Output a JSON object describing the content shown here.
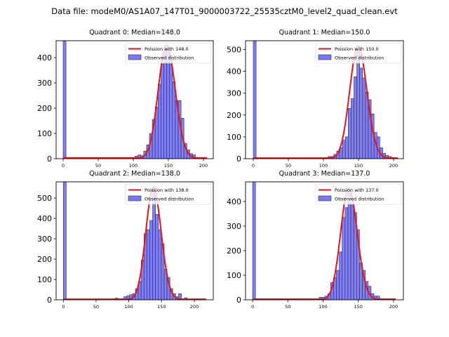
{
  "figure": {
    "suptitle": "Data file: modeM0/AS1A07_147T01_9000003722_25535cztM0_level2_quad_clean.evt"
  },
  "chart_data": [
    {
      "type": "bar",
      "title": "Quadrant 0: Median=148.0",
      "xlabel": "",
      "ylabel": "",
      "xlim": [
        -10,
        214
      ],
      "ylim": [
        0,
        467
      ],
      "xticks": [
        0,
        50,
        100,
        150,
        200
      ],
      "yticks": [
        0,
        100,
        200,
        300,
        400
      ],
      "bin_width": 4.1,
      "bins": [
        {
          "x": 0,
          "count": 467
        },
        {
          "x": 102.5,
          "count": 10
        },
        {
          "x": 106.6,
          "count": 15
        },
        {
          "x": 110.7,
          "count": 12
        },
        {
          "x": 114.8,
          "count": 30
        },
        {
          "x": 118.9,
          "count": 55
        },
        {
          "x": 123,
          "count": 100
        },
        {
          "x": 127.1,
          "count": 155
        },
        {
          "x": 131.2,
          "count": 205
        },
        {
          "x": 135.3,
          "count": 295
        },
        {
          "x": 139.4,
          "count": 375
        },
        {
          "x": 143.5,
          "count": 440
        },
        {
          "x": 147.6,
          "count": 440
        },
        {
          "x": 151.7,
          "count": 375
        },
        {
          "x": 155.8,
          "count": 305
        },
        {
          "x": 159.9,
          "count": 230
        },
        {
          "x": 164,
          "count": 230
        },
        {
          "x": 168.1,
          "count": 160
        },
        {
          "x": 172.2,
          "count": 60
        },
        {
          "x": 176.3,
          "count": 35
        },
        {
          "x": 180.4,
          "count": 20
        },
        {
          "x": 184.5,
          "count": 15
        },
        {
          "x": 188.6,
          "count": 5
        }
      ],
      "poisson_mean": 148.0,
      "poisson_peak": 450,
      "poisson_xrange": [
        0,
        205
      ],
      "legend": {
        "position": "top-right",
        "entries": [
          "Poission with 148.0",
          "Observed distribution"
        ]
      }
    },
    {
      "type": "bar",
      "title": "Quadrant 1: Median=150.0",
      "xlabel": "",
      "ylabel": "",
      "xlim": [
        -11,
        214
      ],
      "ylim": [
        0,
        540
      ],
      "xticks": [
        0,
        50,
        100,
        150,
        200
      ],
      "yticks": [
        0,
        100,
        200,
        300,
        400,
        500
      ],
      "bin_width": 4.1,
      "bins": [
        {
          "x": 0,
          "count": 540
        },
        {
          "x": 90,
          "count": 3
        },
        {
          "x": 102.5,
          "count": 5
        },
        {
          "x": 106.6,
          "count": 10
        },
        {
          "x": 110.7,
          "count": 10
        },
        {
          "x": 114.8,
          "count": 20
        },
        {
          "x": 118.9,
          "count": 35
        },
        {
          "x": 123,
          "count": 50
        },
        {
          "x": 127.1,
          "count": 85
        },
        {
          "x": 131.2,
          "count": 100
        },
        {
          "x": 135.3,
          "count": 230
        },
        {
          "x": 139.4,
          "count": 275
        },
        {
          "x": 143.5,
          "count": 375
        },
        {
          "x": 147.6,
          "count": 500
        },
        {
          "x": 151.7,
          "count": 415
        },
        {
          "x": 155.8,
          "count": 370
        },
        {
          "x": 159.9,
          "count": 305
        },
        {
          "x": 164,
          "count": 270
        },
        {
          "x": 168.1,
          "count": 205
        },
        {
          "x": 172.2,
          "count": 120
        },
        {
          "x": 176.3,
          "count": 100
        },
        {
          "x": 180.4,
          "count": 50
        },
        {
          "x": 184.5,
          "count": 25
        },
        {
          "x": 188.6,
          "count": 15
        },
        {
          "x": 192.7,
          "count": 10
        },
        {
          "x": 196.8,
          "count": 5
        },
        {
          "x": 200.9,
          "count": 3
        }
      ],
      "poisson_mean": 150.0,
      "poisson_peak": 515,
      "poisson_xrange": [
        0,
        206
      ],
      "legend": {
        "position": "top-right",
        "entries": [
          "Poission with 150.0",
          "Observed distribution"
        ]
      }
    },
    {
      "type": "bar",
      "title": "Quadrant 2: Median=138.0",
      "xlabel": "",
      "ylabel": "",
      "xlim": [
        -11,
        229
      ],
      "ylim": [
        0,
        580
      ],
      "xticks": [
        0,
        50,
        100,
        150,
        200
      ],
      "yticks": [
        0,
        100,
        200,
        300,
        400,
        500
      ],
      "bin_width": 4.4,
      "bins": [
        {
          "x": 0,
          "count": 580
        },
        {
          "x": 79.2,
          "count": 8
        },
        {
          "x": 88,
          "count": 5
        },
        {
          "x": 92.4,
          "count": 15
        },
        {
          "x": 96.8,
          "count": 20
        },
        {
          "x": 101.2,
          "count": 25
        },
        {
          "x": 105.6,
          "count": 30
        },
        {
          "x": 110,
          "count": 55
        },
        {
          "x": 114.4,
          "count": 90
        },
        {
          "x": 118.8,
          "count": 195
        },
        {
          "x": 123.2,
          "count": 325
        },
        {
          "x": 127.6,
          "count": 345
        },
        {
          "x": 132,
          "count": 390
        },
        {
          "x": 136.4,
          "count": 555
        },
        {
          "x": 140.8,
          "count": 420
        },
        {
          "x": 145.2,
          "count": 345
        },
        {
          "x": 149.6,
          "count": 275
        },
        {
          "x": 154,
          "count": 150
        },
        {
          "x": 158.4,
          "count": 110
        },
        {
          "x": 162.8,
          "count": 55
        },
        {
          "x": 167.2,
          "count": 30
        },
        {
          "x": 171.6,
          "count": 15
        },
        {
          "x": 176,
          "count": 30
        },
        {
          "x": 180.4,
          "count": 5
        },
        {
          "x": 184.8,
          "count": 10
        }
      ],
      "poisson_mean": 138.0,
      "poisson_peak": 550,
      "poisson_xrange": [
        0,
        218
      ],
      "legend": {
        "position": "top-right",
        "entries": [
          "Poission with 138.0",
          "Observed distribution"
        ]
      }
    },
    {
      "type": "bar",
      "title": "Quadrant 3: Median=137.0",
      "xlabel": "",
      "ylabel": "",
      "xlim": [
        -10,
        214
      ],
      "ylim": [
        0,
        480
      ],
      "xticks": [
        0,
        50,
        100,
        150,
        200
      ],
      "yticks": [
        0,
        100,
        200,
        300,
        400
      ],
      "bin_width": 4.1,
      "bins": [
        {
          "x": 0,
          "count": 480
        },
        {
          "x": 94.3,
          "count": 10
        },
        {
          "x": 98.4,
          "count": 10
        },
        {
          "x": 102.5,
          "count": 15
        },
        {
          "x": 106.6,
          "count": 25
        },
        {
          "x": 110.7,
          "count": 70
        },
        {
          "x": 114.8,
          "count": 90
        },
        {
          "x": 118.9,
          "count": 120
        },
        {
          "x": 123,
          "count": 195
        },
        {
          "x": 127.1,
          "count": 335
        },
        {
          "x": 131.2,
          "count": 375
        },
        {
          "x": 135.3,
          "count": 440
        },
        {
          "x": 139.4,
          "count": 390
        },
        {
          "x": 143.5,
          "count": 355
        },
        {
          "x": 147.6,
          "count": 285
        },
        {
          "x": 151.7,
          "count": 150
        },
        {
          "x": 155.8,
          "count": 120
        },
        {
          "x": 159.9,
          "count": 75
        },
        {
          "x": 164,
          "count": 55
        },
        {
          "x": 168.1,
          "count": 25
        },
        {
          "x": 172.2,
          "count": 15
        },
        {
          "x": 176.3,
          "count": 15
        },
        {
          "x": 180.4,
          "count": 5
        }
      ],
      "poisson_mean": 137.0,
      "poisson_peak": 455,
      "poisson_xrange": [
        0,
        203
      ],
      "legend": {
        "position": "top-right",
        "entries": [
          "Poission with 137.0",
          "Observed distribution"
        ]
      }
    }
  ],
  "colors": {
    "bar_fill": "#7878f0",
    "bar_edge": "#2a2a6a",
    "poisson_line": "#ee1111",
    "axes": "#000000"
  }
}
